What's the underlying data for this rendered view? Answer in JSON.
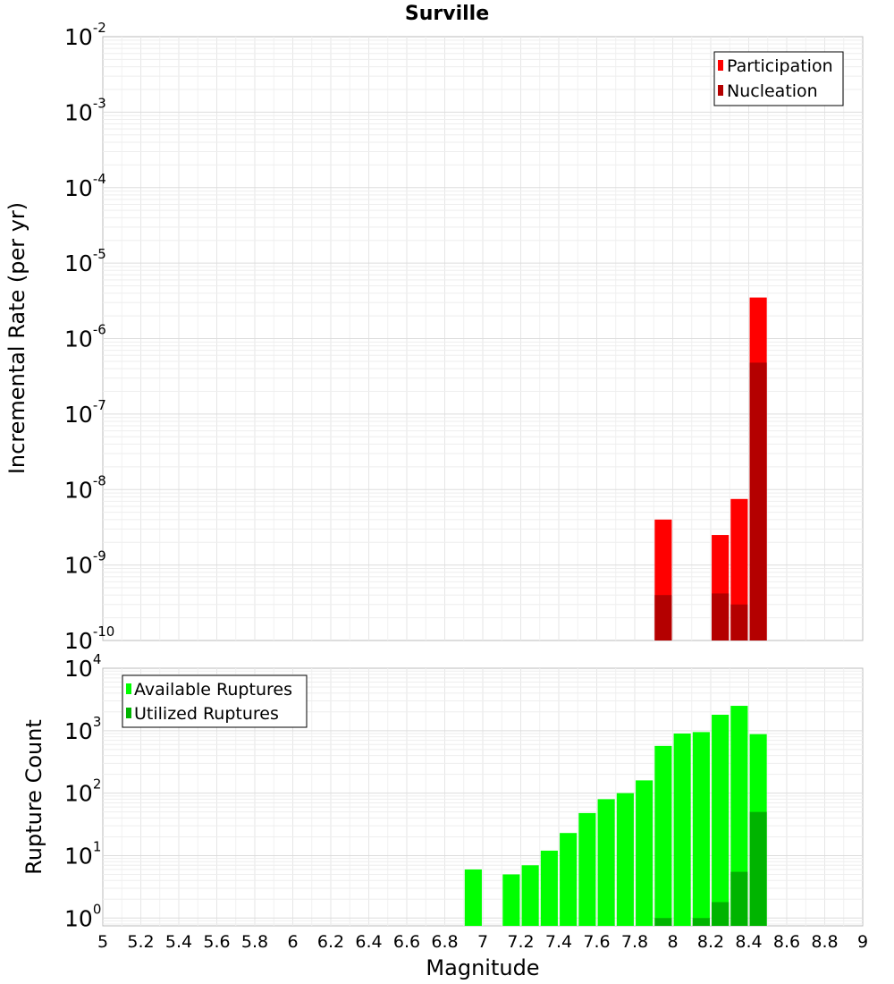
{
  "chart_data": [
    {
      "type": "bar",
      "title": "Surville",
      "xlabel": "",
      "ylabel": "Incremental Rate (per yr)",
      "y_scale": "log",
      "ylim": [
        1e-10,
        0.01
      ],
      "xlim": [
        5,
        9
      ],
      "y_ticks": [
        {
          "base": "10",
          "exp": "-2",
          "value": 0.01
        },
        {
          "base": "10",
          "exp": "-3",
          "value": 0.001
        },
        {
          "base": "10",
          "exp": "-4",
          "value": 0.0001
        },
        {
          "base": "10",
          "exp": "-5",
          "value": 1e-05
        },
        {
          "base": "10",
          "exp": "-6",
          "value": 1e-06
        },
        {
          "base": "10",
          "exp": "-7",
          "value": 1e-07
        },
        {
          "base": "10",
          "exp": "-8",
          "value": 1e-08
        },
        {
          "base": "10",
          "exp": "-9",
          "value": 1e-09
        },
        {
          "base": "10",
          "exp": "-10",
          "value": 1e-10
        }
      ],
      "legend": {
        "position": "top-right",
        "entries": [
          "Participation",
          "Nucleation"
        ]
      },
      "grid": true,
      "series": [
        {
          "name": "Participation",
          "color": "#ff0000",
          "x": [
            7.95,
            8.25,
            8.35,
            8.45
          ],
          "values": [
            4e-09,
            2.5e-09,
            7.5e-09,
            3.5e-06
          ]
        },
        {
          "name": "Nucleation",
          "color": "#b40000",
          "x": [
            7.95,
            8.25,
            8.35,
            8.45
          ],
          "values": [
            4e-10,
            4.2e-10,
            3e-10,
            4.8e-07
          ]
        }
      ]
    },
    {
      "type": "bar",
      "title": "",
      "xlabel": "Magnitude",
      "ylabel": "Rupture Count",
      "y_scale": "log",
      "ylim": [
        0.75,
        10000
      ],
      "xlim": [
        5,
        9
      ],
      "y_ticks": [
        {
          "base": "10",
          "exp": "4",
          "value": 10000
        },
        {
          "base": "10",
          "exp": "3",
          "value": 1000
        },
        {
          "base": "10",
          "exp": "2",
          "value": 100
        },
        {
          "base": "10",
          "exp": "1",
          "value": 10
        },
        {
          "base": "10",
          "exp": "0",
          "value": 1
        }
      ],
      "x_ticks": [
        "5",
        "5.2",
        "5.4",
        "5.6",
        "5.8",
        "6",
        "6.2",
        "6.4",
        "6.6",
        "6.8",
        "7",
        "7.2",
        "7.4",
        "7.6",
        "7.8",
        "8",
        "8.2",
        "8.4",
        "8.6",
        "8.8",
        "9"
      ],
      "legend": {
        "position": "top-left",
        "entries": [
          "Available Ruptures",
          "Utilized Ruptures"
        ]
      },
      "grid": true,
      "series": [
        {
          "name": "Available Ruptures",
          "color": "#00ff00",
          "x": [
            6.95,
            7.15,
            7.25,
            7.35,
            7.45,
            7.55,
            7.65,
            7.75,
            7.85,
            7.95,
            8.05,
            8.15,
            8.25,
            8.35,
            8.45
          ],
          "values": [
            6,
            5,
            7,
            12,
            23,
            48,
            80,
            100,
            160,
            570,
            900,
            950,
            1800,
            2500,
            880
          ]
        },
        {
          "name": "Utilized Ruptures",
          "color": "#00b400",
          "x": [
            7.95,
            8.15,
            8.25,
            8.35,
            8.45
          ],
          "values": [
            1,
            1,
            1.8,
            5.5,
            50
          ]
        }
      ]
    }
  ]
}
